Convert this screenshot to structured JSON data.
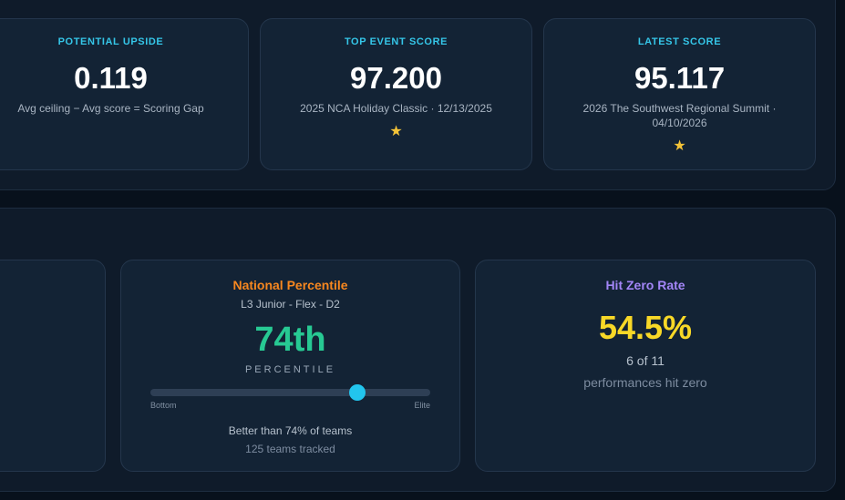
{
  "stats": [
    {
      "label": "POTENTIAL UPSIDE",
      "value": "0.119",
      "subtext": "Avg ceiling − Avg score = Scoring Gap",
      "icon": null
    },
    {
      "label": "TOP EVENT SCORE",
      "value": "97.200",
      "subtext": "2025 NCA Holiday Classic · 12/13/2025",
      "icon": "star-icon"
    },
    {
      "label": "LATEST SCORE",
      "value": "95.117",
      "subtext": "2026 The Southwest Regional Summit · 04/10/2026",
      "icon": "star-icon"
    }
  ],
  "percentile": {
    "title": "National Percentile",
    "division": "L3 Junior - Flex - D2",
    "value": "74th",
    "caption": "PERCENTILE",
    "level": 0.74,
    "low_label": "Bottom",
    "high_label": "Elite",
    "better_than": "Better than 74% of teams",
    "tracked": "125 teams tracked"
  },
  "hit_zero": {
    "title": "Hit Zero Rate",
    "value": "54.5%",
    "count": "6 of 11",
    "note": "performances hit zero"
  },
  "colors": {
    "accent_cyan": "#35c6e8",
    "percentile_orange": "#f7871f",
    "percentile_green": "#27c993",
    "hit_zero_purple": "#a386f7",
    "hit_zero_yellow": "#f8d827",
    "star_gold": "#f4c338"
  }
}
